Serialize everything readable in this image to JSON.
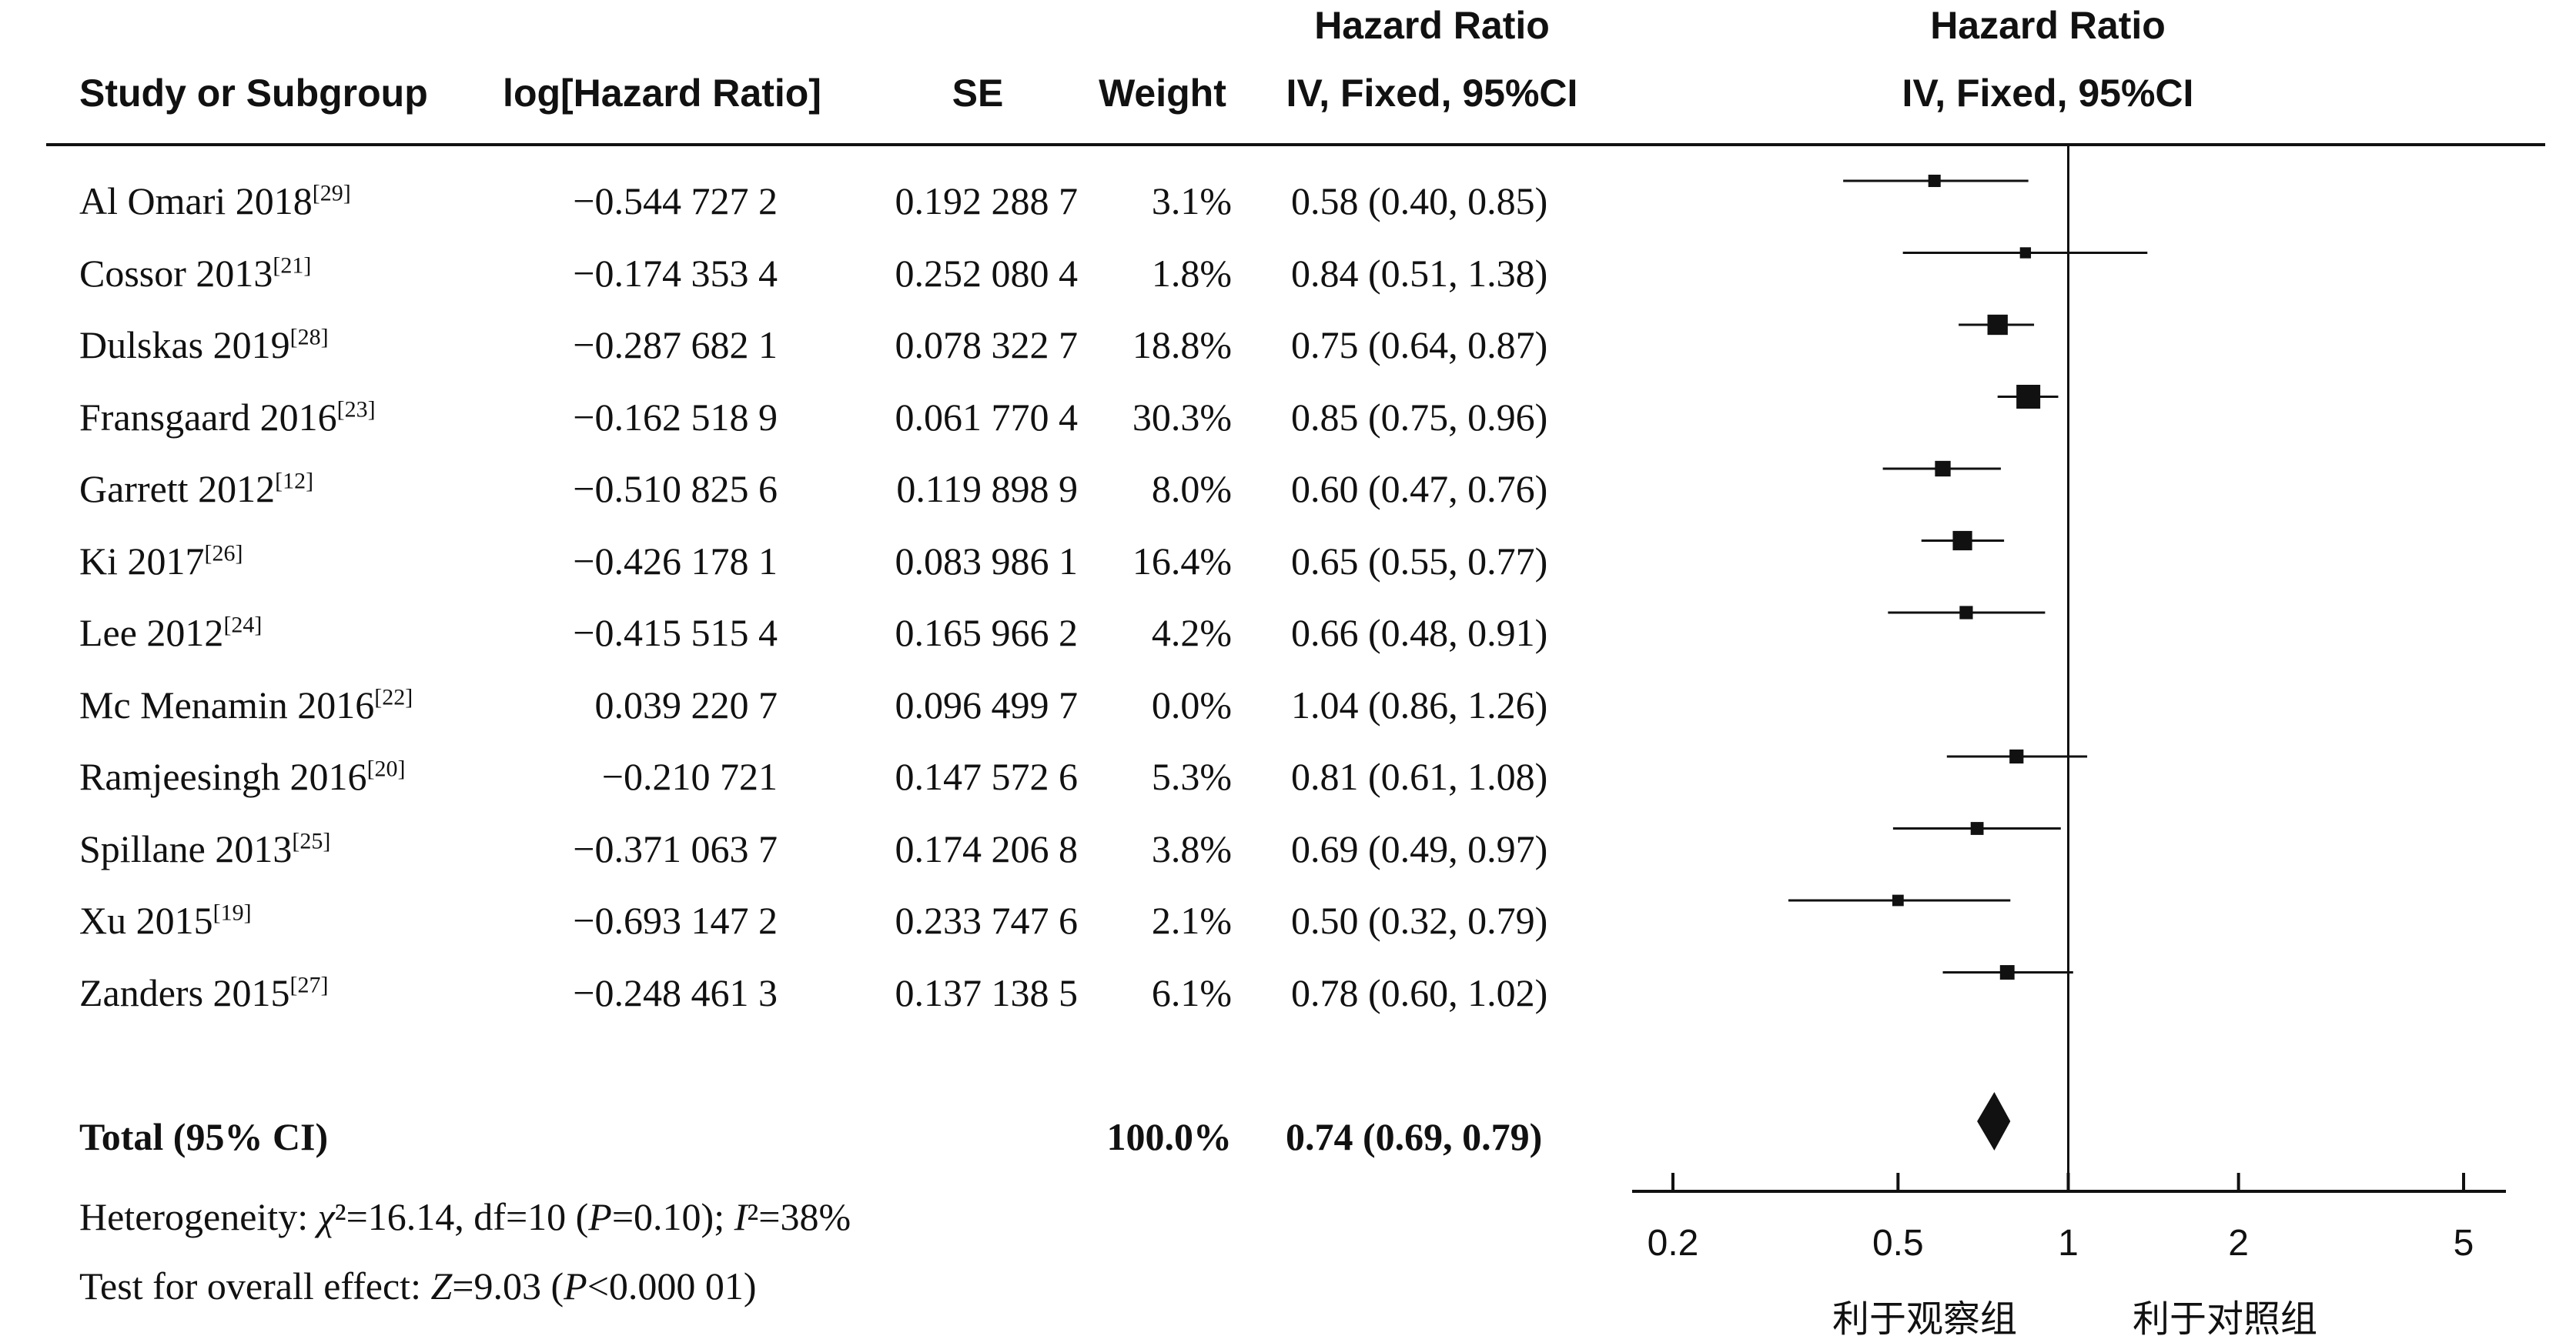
{
  "header": {
    "study": "Study or Subgroup",
    "loghr": "log[Hazard Ratio]",
    "se": "SE",
    "weight": "Weight",
    "hr_title": "Hazard Ratio",
    "hr_method": "IV, Fixed, 95%CI",
    "plot_title": "Hazard Ratio",
    "plot_method": "IV, Fixed, 95%CI"
  },
  "chart_data": {
    "type": "forest",
    "x_scale": "log",
    "xlim": [
      0.2,
      5
    ],
    "reference_line": 1,
    "studies": [
      {
        "name": "Al Omari 2018",
        "ref": "[29]",
        "loghr": "−0.544 727 2",
        "se": "0.192 288 7",
        "weight": "3.1%",
        "weight_value": 3.1,
        "hr_text": "0.58 (0.40, 0.85)",
        "hr": 0.58,
        "lower": 0.4,
        "upper": 0.85
      },
      {
        "name": "Cossor 2013",
        "ref": "[21]",
        "loghr": "−0.174 353 4",
        "se": "0.252 080 4",
        "weight": "1.8%",
        "weight_value": 1.8,
        "hr_text": "0.84 (0.51, 1.38)",
        "hr": 0.84,
        "lower": 0.51,
        "upper": 1.38
      },
      {
        "name": "Dulskas 2019",
        "ref": "[28]",
        "loghr": "−0.287 682 1",
        "se": "0.078 322 7",
        "weight": "18.8%",
        "weight_value": 18.8,
        "hr_text": "0.75 (0.64, 0.87)",
        "hr": 0.75,
        "lower": 0.64,
        "upper": 0.87
      },
      {
        "name": "Fransgaard 2016",
        "ref": "[23]",
        "loghr": "−0.162 518 9",
        "se": "0.061 770 4",
        "weight": "30.3%",
        "weight_value": 30.3,
        "hr_text": "0.85 (0.75, 0.96)",
        "hr": 0.85,
        "lower": 0.75,
        "upper": 0.96
      },
      {
        "name": "Garrett  2012",
        "ref": "[12]",
        "loghr": "−0.510 825 6",
        "se": "0.119 898 9",
        "weight": "8.0%",
        "weight_value": 8.0,
        "hr_text": "0.60 (0.47, 0.76)",
        "hr": 0.6,
        "lower": 0.47,
        "upper": 0.76
      },
      {
        "name": "Ki 2017",
        "ref": "[26]",
        "loghr": "−0.426 178 1",
        "se": "0.083 986 1",
        "weight": "16.4%",
        "weight_value": 16.4,
        "hr_text": "0.65 (0.55, 0.77)",
        "hr": 0.65,
        "lower": 0.55,
        "upper": 0.77
      },
      {
        "name": "Lee 2012",
        "ref": "[24]",
        "loghr": "−0.415 515 4",
        "se": "0.165 966 2",
        "weight": "4.2%",
        "weight_value": 4.2,
        "hr_text": "0.66 (0.48, 0.91)",
        "hr": 0.66,
        "lower": 0.48,
        "upper": 0.91
      },
      {
        "name": "Mc Menamin 2016",
        "ref": "[22]",
        "loghr": "0.039 220 7",
        "se": "0.096 499 7",
        "weight": "0.0%",
        "weight_value": 0.0,
        "hr_text": "1.04 (0.86, 1.26)",
        "hr": 1.04,
        "lower": 0.86,
        "upper": 1.26,
        "plotted": false
      },
      {
        "name": "Ramjeesingh 2016",
        "ref": "[20]",
        "loghr": "−0.210 721",
        "se": "0.147 572 6",
        "weight": "5.3%",
        "weight_value": 5.3,
        "hr_text": "0.81 (0.61, 1.08)",
        "hr": 0.81,
        "lower": 0.61,
        "upper": 1.08
      },
      {
        "name": "Spillane 2013",
        "ref": "[25]",
        "loghr": "−0.371 063 7",
        "se": "0.174 206 8",
        "weight": "3.8%",
        "weight_value": 3.8,
        "hr_text": "0.69 (0.49, 0.97)",
        "hr": 0.69,
        "lower": 0.49,
        "upper": 0.97
      },
      {
        "name": "Xu 2015",
        "ref": "[19]",
        "loghr": "−0.693 147 2",
        "se": "0.233 747 6",
        "weight": "2.1%",
        "weight_value": 2.1,
        "hr_text": "0.50 (0.32, 0.79)",
        "hr": 0.5,
        "lower": 0.32,
        "upper": 0.79
      },
      {
        "name": "Zanders 2015",
        "ref": "[27]",
        "loghr": "−0.248 461 3",
        "se": "0.137 138 5",
        "weight": "6.1%",
        "weight_value": 6.1,
        "hr_text": "0.78 (0.60, 1.02)",
        "hr": 0.78,
        "lower": 0.6,
        "upper": 1.02
      }
    ],
    "total": {
      "label": "Total (95% CI)",
      "weight": "100.0%",
      "hr_text": "0.74 (0.69, 0.79)",
      "hr": 0.74,
      "lower": 0.69,
      "upper": 0.79
    },
    "x_ticks": [
      {
        "value": 0.2,
        "label": "0.2"
      },
      {
        "value": 0.5,
        "label": "0.5"
      },
      {
        "value": 1,
        "label": "1"
      },
      {
        "value": 2,
        "label": "2"
      },
      {
        "value": 5,
        "label": "5"
      }
    ],
    "favors_left": "利于观察组",
    "favors_right": "利于对照组"
  },
  "footer": {
    "heterogeneity": "Heterogeneity: χ²=16.14, df=10 (P=0.10); I²=38%",
    "overall": "Test for overall effect: Z=9.03 (P<0.000 01)"
  }
}
